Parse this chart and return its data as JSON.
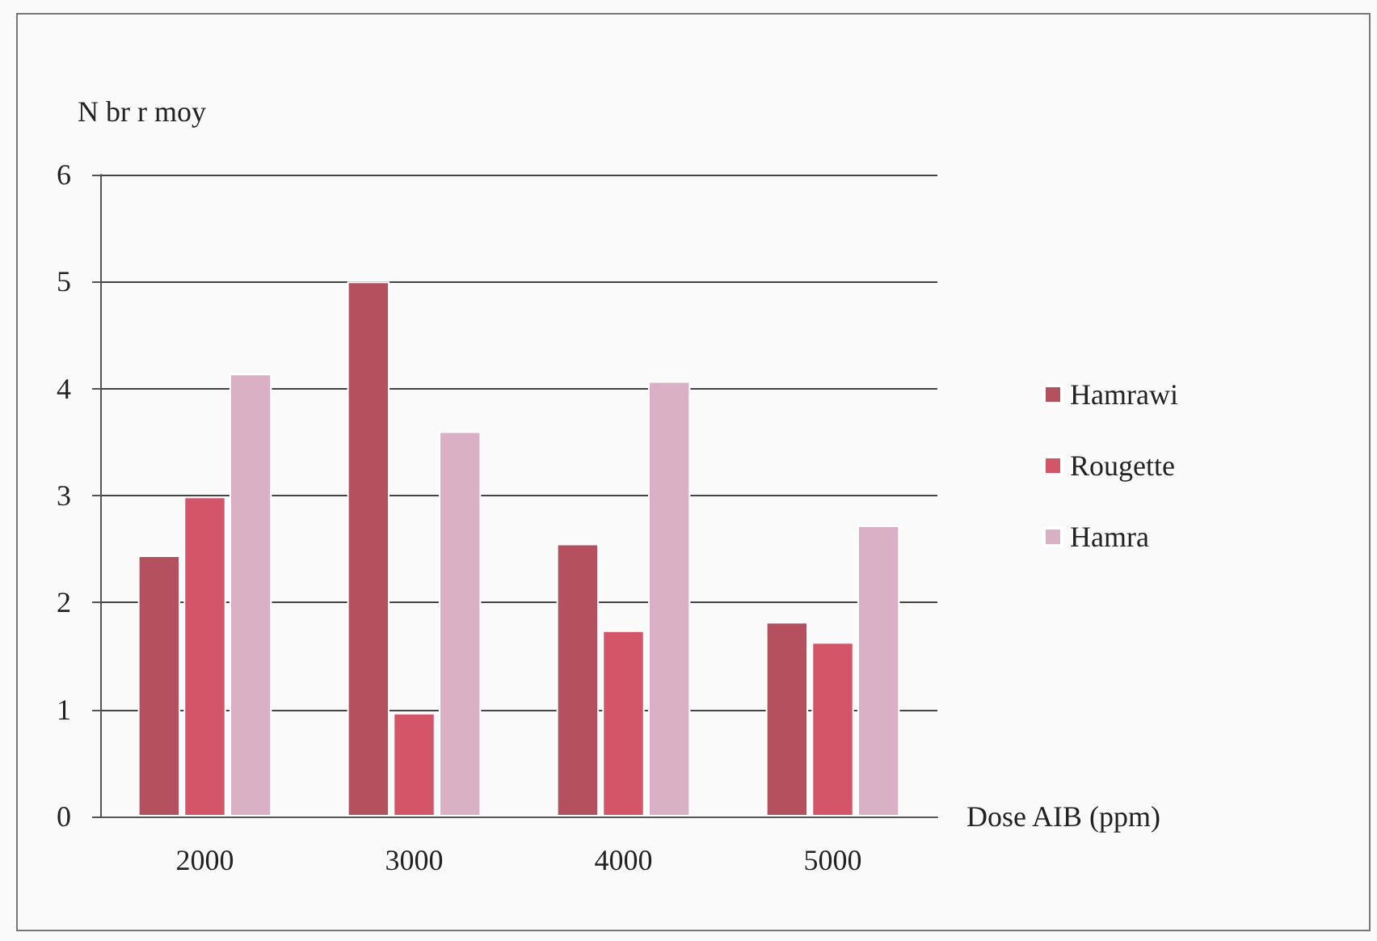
{
  "chart_data": {
    "type": "bar",
    "ylabel": "N br r moy",
    "xlabel": "Dose AIB (ppm)",
    "categories": [
      "2000",
      "3000",
      "4000",
      "5000"
    ],
    "series": [
      {
        "name": "Hamrawi",
        "color": "#b5505e",
        "values": [
          2.44,
          5.0,
          2.55,
          1.82
        ]
      },
      {
        "name": "Rougette",
        "color": "#d45468",
        "values": [
          2.99,
          0.97,
          1.74,
          1.63
        ]
      },
      {
        "name": "Hamra",
        "color": "#d9b0c4",
        "values": [
          4.14,
          3.6,
          4.07,
          2.72
        ]
      }
    ],
    "ylim": [
      0,
      6
    ],
    "yticks": [
      0,
      1,
      2,
      3,
      4,
      5,
      6
    ],
    "grid": "y",
    "legend": "right"
  }
}
